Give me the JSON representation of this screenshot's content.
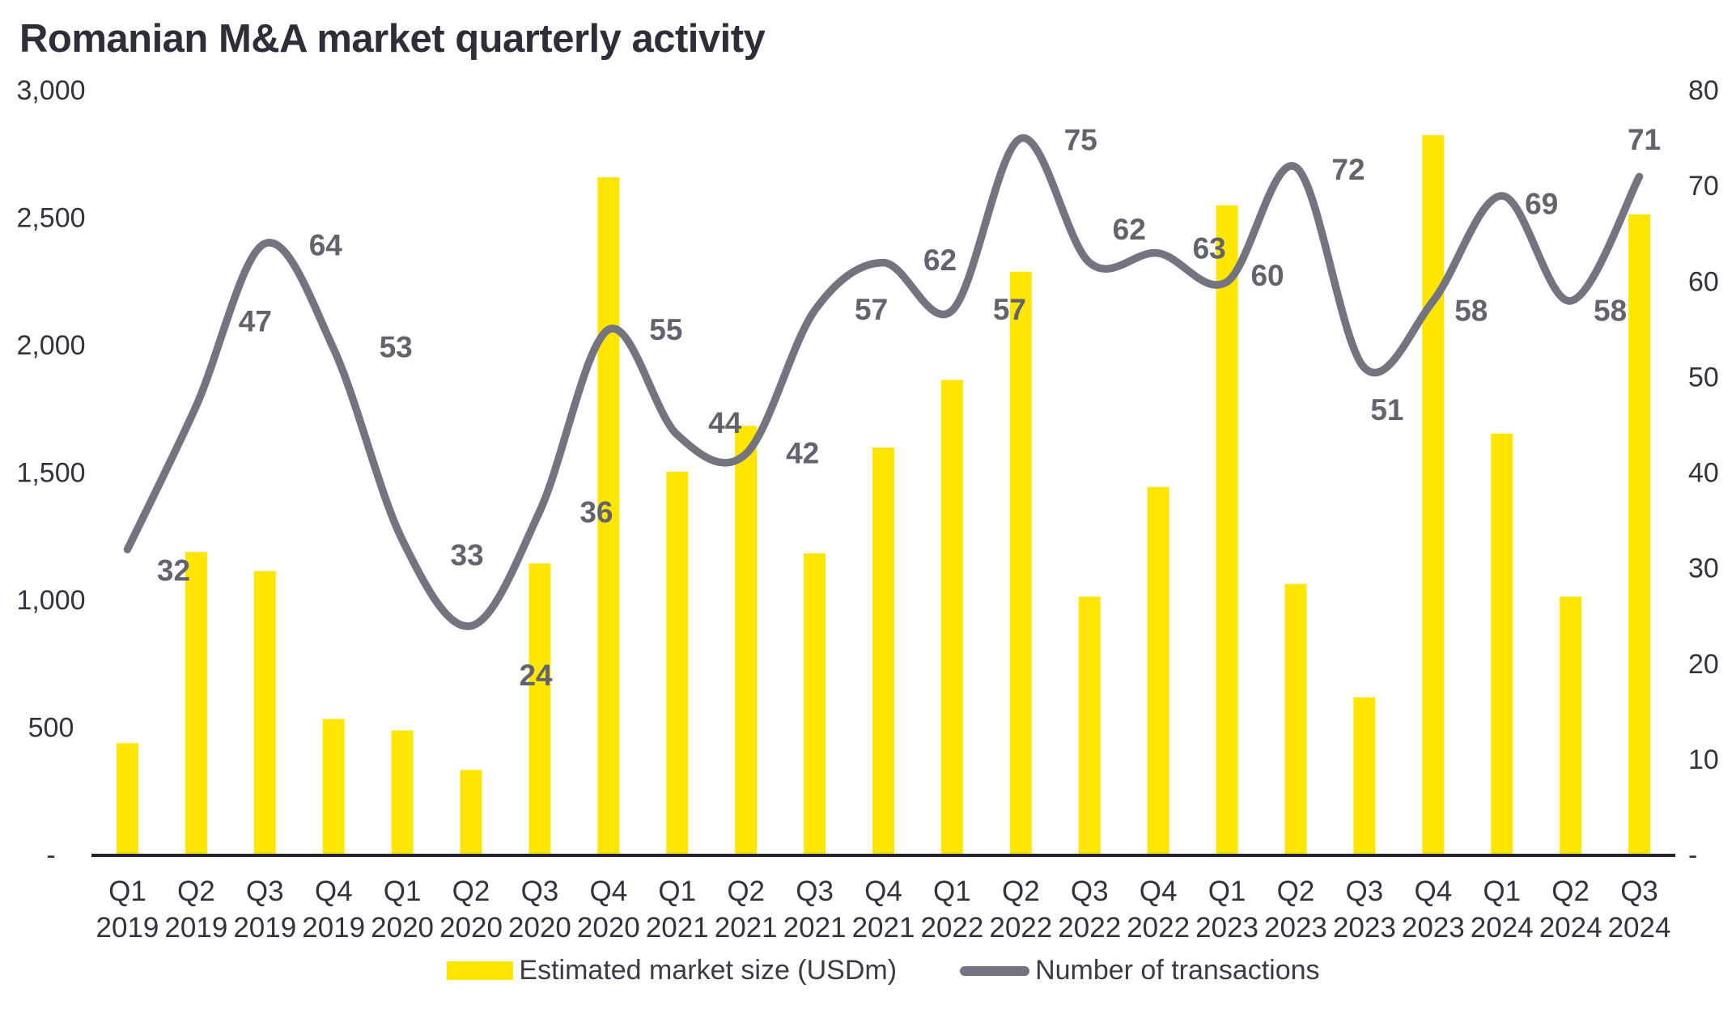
{
  "title": "Romanian M&A market quarterly activity",
  "colors": {
    "bar": "#FFE600",
    "line": "#747480",
    "title_text": "#2E2E38",
    "axis_text": "#33333E",
    "data_label": "#63636E",
    "axis_line": "#23232E",
    "background": "#FFFFFF"
  },
  "legend": {
    "items": [
      {
        "swatch": "bar-swatch",
        "label": "Estimated market size (USDm)"
      },
      {
        "swatch": "line-swatch",
        "label": "Number of transactions"
      }
    ]
  },
  "chart_data": {
    "type": "combo",
    "subtypes": [
      "bar",
      "line"
    ],
    "categories": [
      [
        "Q1",
        "2019"
      ],
      [
        "Q2",
        "2019"
      ],
      [
        "Q3",
        "2019"
      ],
      [
        "Q4",
        "2019"
      ],
      [
        "Q1",
        "2020"
      ],
      [
        "Q2",
        "2020"
      ],
      [
        "Q3",
        "2020"
      ],
      [
        "Q4",
        "2020"
      ],
      [
        "Q1",
        "2021"
      ],
      [
        "Q2",
        "2021"
      ],
      [
        "Q3",
        "2021"
      ],
      [
        "Q4",
        "2021"
      ],
      [
        "Q1",
        "2022"
      ],
      [
        "Q2",
        "2022"
      ],
      [
        "Q3",
        "2022"
      ],
      [
        "Q4",
        "2022"
      ],
      [
        "Q1",
        "2023"
      ],
      [
        "Q2",
        "2023"
      ],
      [
        "Q3",
        "2023"
      ],
      [
        "Q4",
        "2023"
      ],
      [
        "Q1",
        "2024"
      ],
      [
        "Q2",
        "2024"
      ],
      [
        "Q3",
        "2024"
      ]
    ],
    "series": [
      {
        "name": "Estimated market size (USDm)",
        "type": "bar",
        "axis": "left",
        "values": [
          440,
          1190,
          1115,
          535,
          490,
          335,
          1145,
          2660,
          1505,
          1685,
          1185,
          1600,
          1865,
          2290,
          1015,
          1445,
          2550,
          1065,
          620,
          2825,
          1655,
          1015,
          2515
        ]
      },
      {
        "name": "Number of transactions",
        "type": "line",
        "axis": "right",
        "smooth": true,
        "values": [
          32,
          47,
          64,
          53,
          33,
          24,
          36,
          55,
          44,
          42,
          57,
          62,
          57,
          75,
          62,
          63,
          60,
          72,
          51,
          58,
          69,
          58,
          71
        ],
        "labels_shown": true,
        "label_offsets": [
          [
            57,
            26
          ],
          [
            73,
            -105
          ],
          [
            75,
            2
          ],
          [
            77,
            -2
          ],
          [
            80,
            19
          ],
          [
            80,
            61
          ],
          [
            70,
            1
          ],
          [
            71,
            0
          ],
          [
            59,
            -15
          ],
          [
            70,
            -1
          ],
          [
            70,
            -1
          ],
          [
            70,
            -3
          ],
          [
            71,
            -1
          ],
          [
            74,
            2
          ],
          [
            49,
            -41
          ],
          [
            63,
            -6
          ],
          [
            50,
            -8
          ],
          [
            65,
            3
          ],
          [
            28,
            52
          ],
          [
            47,
            12
          ],
          [
            49,
            10
          ],
          [
            49,
            12
          ],
          [
            6,
            -46
          ]
        ]
      }
    ],
    "left_axis": {
      "min": 0,
      "max": 3000,
      "step": 500,
      "tick_labels": [
        "3,000",
        "2,500",
        "2,000",
        "1,500",
        "1,000",
        "500",
        "-"
      ]
    },
    "right_axis": {
      "min": 0,
      "max": 80,
      "step": 10,
      "tick_labels": [
        "80",
        "70",
        "60",
        "50",
        "40",
        "30",
        "20",
        "10",
        "-"
      ]
    },
    "grid": false,
    "legend_position": "bottom-center",
    "title": "Romanian M&A market quarterly activity",
    "xlabel": "",
    "ylabel_left": "",
    "ylabel_right": ""
  }
}
